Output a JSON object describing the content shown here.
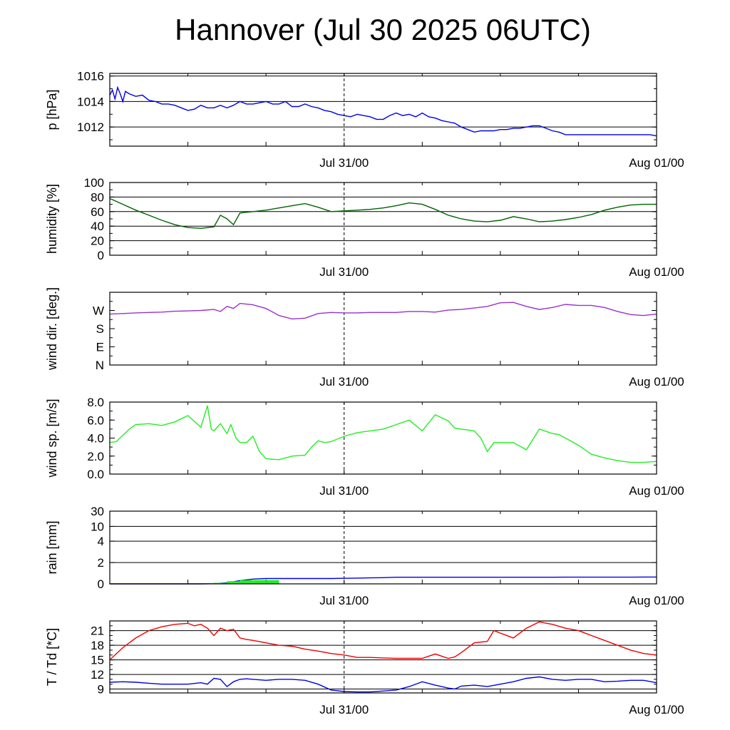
{
  "title": "Hannover (Jul 30 2025 06UTC)",
  "colors": {
    "pressure": "#0000ee",
    "humidity": "#006400",
    "wind_dir": "#9932cc",
    "wind_speed": "#22ee22",
    "rain_accum": "#0000ee",
    "rain_bar": "#22ee22",
    "temperature": "#ee0000",
    "dewpoint": "#0000ee"
  },
  "chart_data": [
    {
      "type": "line",
      "ylabel": "p [hPa]",
      "ylim": [
        1010.5,
        1016.2
      ],
      "yticks": [
        1012,
        1014,
        1016
      ],
      "grid": true,
      "x_ticks": [
        "Jul 31/00",
        "Aug 01/00"
      ],
      "series": [
        {
          "key": "pressure",
          "x": [
            0,
            0.2,
            0.4,
            0.6,
            0.8,
            1,
            1.2,
            1.5,
            2,
            2.5,
            3,
            3.5,
            4,
            4.5,
            5,
            5.5,
            6,
            6.5,
            7,
            7.5,
            8,
            8.5,
            9,
            9.5,
            10,
            10.5,
            11,
            11.5,
            12,
            12.5,
            13,
            13.5,
            14,
            14.5,
            15,
            15.5,
            16,
            16.5,
            17,
            17.5,
            18,
            18.5,
            19,
            19.5,
            20,
            20.5,
            21,
            21.5,
            22,
            22.5,
            23,
            23.5,
            24,
            24.5,
            25,
            25.5,
            26,
            26.5,
            27,
            27.5,
            28,
            28.5,
            29,
            29.5,
            30,
            30.5,
            31,
            31.5,
            32,
            32.5,
            33,
            33.5,
            34,
            34.5,
            35,
            35.5,
            36,
            36.5,
            37,
            37.5,
            38,
            38.5,
            39,
            39.5,
            40,
            40.5,
            41,
            41.5,
            42
          ],
          "values": [
            1014.5,
            1014.9,
            1014.2,
            1015.1,
            1014.6,
            1014.0,
            1014.8,
            1014.6,
            1014.4,
            1014.5,
            1014.1,
            1014.0,
            1013.8,
            1013.8,
            1013.7,
            1013.5,
            1013.3,
            1013.4,
            1013.7,
            1013.5,
            1013.5,
            1013.7,
            1013.5,
            1013.7,
            1014.0,
            1013.8,
            1013.8,
            1013.9,
            1014.0,
            1013.8,
            1013.8,
            1014.0,
            1013.6,
            1013.6,
            1013.8,
            1013.6,
            1013.5,
            1013.3,
            1013.2,
            1013.0,
            1012.9,
            1012.8,
            1013.0,
            1012.9,
            1012.8,
            1012.6,
            1012.6,
            1012.9,
            1013.1,
            1012.9,
            1013.0,
            1012.8,
            1013.1,
            1012.8,
            1012.7,
            1012.5,
            1012.4,
            1012.3,
            1012.0,
            1011.8,
            1011.6,
            1011.7,
            1011.7,
            1011.7,
            1011.8,
            1011.8,
            1011.9,
            1011.9,
            1012.0,
            1012.1,
            1012.1,
            1011.9,
            1011.7,
            1011.6,
            1011.4,
            1011.4,
            1011.4,
            1011.4,
            1011.4,
            1011.4,
            1011.4,
            1011.4,
            1011.4,
            1011.4,
            1011.4,
            1011.4,
            1011.4,
            1011.4,
            1011.3
          ]
        }
      ]
    },
    {
      "type": "line",
      "ylabel": "humidity [%]",
      "ylim": [
        0,
        100
      ],
      "yticks": [
        0,
        20,
        40,
        60,
        80,
        100
      ],
      "grid": true,
      "x_ticks": [
        "Jul 31/00",
        "Aug 01/00"
      ],
      "series": [
        {
          "key": "humidity",
          "x": [
            0,
            1,
            2,
            3,
            4,
            5,
            6,
            7,
            8,
            8.5,
            9,
            9.5,
            10,
            11,
            12,
            13,
            14,
            15,
            16,
            17,
            18,
            19,
            20,
            21,
            22,
            23,
            24,
            25,
            26,
            27,
            28,
            29,
            30,
            31,
            32,
            33,
            34,
            35,
            36,
            37,
            38,
            39,
            40,
            41,
            42
          ],
          "values": [
            78,
            70,
            62,
            55,
            48,
            42,
            38,
            37,
            39,
            55,
            50,
            42,
            58,
            60,
            62,
            65,
            68,
            71,
            66,
            60,
            61,
            62,
            63,
            65,
            68,
            72,
            70,
            63,
            55,
            50,
            47,
            46,
            48,
            53,
            50,
            46,
            47,
            49,
            52,
            56,
            62,
            66,
            69,
            70,
            70
          ]
        }
      ]
    },
    {
      "type": "line",
      "ylabel": "wind dir. [deg.]",
      "ylim": [
        0,
        360
      ],
      "yticks": [
        0,
        90,
        180,
        270
      ],
      "ytick_labels": [
        "N",
        "E",
        "S",
        "W"
      ],
      "grid": false,
      "x_ticks": [
        "Jul 31/00",
        "Aug 01/00"
      ],
      "series": [
        {
          "key": "wind_dir",
          "x": [
            0,
            1,
            2,
            3,
            4,
            5,
            6,
            7,
            8,
            8.5,
            9,
            9.5,
            10,
            11,
            12,
            13,
            14,
            15,
            16,
            17,
            18,
            19,
            20,
            21,
            22,
            23,
            24,
            25,
            26,
            27,
            28,
            29,
            30,
            31,
            32,
            33,
            34,
            35,
            36,
            37,
            38,
            39,
            40,
            41,
            42
          ],
          "values": [
            252,
            255,
            258,
            260,
            262,
            266,
            268,
            270,
            275,
            265,
            290,
            280,
            305,
            298,
            280,
            245,
            228,
            232,
            255,
            260,
            258,
            258,
            260,
            260,
            260,
            265,
            265,
            262,
            272,
            275,
            282,
            290,
            308,
            310,
            290,
            275,
            285,
            300,
            295,
            295,
            285,
            265,
            250,
            245,
            252
          ]
        }
      ]
    },
    {
      "type": "line",
      "ylabel": "wind sp. [m/s]",
      "ylim": [
        0,
        8
      ],
      "yticks": [
        0,
        2,
        4,
        6,
        8
      ],
      "ytick_labels": [
        "0.0",
        "2.0",
        "4.0",
        "6.0",
        "8.0"
      ],
      "grid": false,
      "x_ticks": [
        "Jul 31/00",
        "Aug 01/00"
      ],
      "series": [
        {
          "key": "wind_speed",
          "x": [
            0,
            0.5,
            1,
            1.5,
            2,
            3,
            4,
            5,
            6,
            7,
            7.5,
            7.8,
            8,
            8.5,
            9,
            9.3,
            9.7,
            10,
            10.5,
            11,
            11.5,
            12,
            13,
            14,
            15,
            15.5,
            16,
            16.5,
            17,
            18,
            19,
            20,
            21,
            22,
            23,
            24,
            25,
            26,
            26.5,
            27,
            28,
            28.5,
            29,
            29.5,
            30,
            31,
            32,
            33,
            34,
            34.5,
            35,
            36,
            37,
            38,
            39,
            40,
            41,
            42
          ],
          "values": [
            3.5,
            3.6,
            4.3,
            5.0,
            5.5,
            5.6,
            5.4,
            5.8,
            6.5,
            5.2,
            7.6,
            5.0,
            4.8,
            5.6,
            4.5,
            5.5,
            4.0,
            3.5,
            3.5,
            4.2,
            2.5,
            1.7,
            1.6,
            2.0,
            2.1,
            3.0,
            3.7,
            3.5,
            3.6,
            4.2,
            4.6,
            4.8,
            5.0,
            5.5,
            6.0,
            4.8,
            6.6,
            5.9,
            5.1,
            5.0,
            4.8,
            4.0,
            2.5,
            3.5,
            3.5,
            3.5,
            2.7,
            5.0,
            4.5,
            4.4,
            4.0,
            3.2,
            2.2,
            1.8,
            1.5,
            1.3,
            1.3,
            1.4
          ]
        }
      ]
    },
    {
      "type": "area",
      "ylabel": "rain [mm]",
      "yticks": [
        0,
        2,
        4,
        10,
        30
      ],
      "grid": true,
      "x_ticks": [
        "Jul 31/00",
        "Aug 01/00"
      ],
      "series": [
        {
          "key": "rain_accum",
          "x": [
            0,
            6,
            7,
            8,
            9,
            10,
            11,
            12,
            13,
            14,
            15,
            16,
            17,
            18,
            19,
            20,
            21,
            22,
            23,
            24,
            25,
            26,
            27,
            28,
            29,
            30,
            31,
            32,
            33,
            34,
            35,
            36,
            37,
            38,
            39,
            40,
            41,
            42
          ],
          "values": [
            0,
            0,
            0,
            0.02,
            0.1,
            0.3,
            0.45,
            0.5,
            0.5,
            0.5,
            0.5,
            0.5,
            0.5,
            0.52,
            0.54,
            0.56,
            0.58,
            0.62,
            0.62,
            0.62,
            0.62,
            0.62,
            0.62,
            0.62,
            0.62,
            0.62,
            0.62,
            0.62,
            0.62,
            0.62,
            0.63,
            0.63,
            0.63,
            0.63,
            0.63,
            0.63,
            0.64,
            0.64
          ]
        },
        {
          "key": "rain_bar",
          "x": [
            7.5,
            8.5,
            9.5,
            10.5,
            11.5,
            12.5,
            13.5,
            25.5,
            26.5,
            27.5,
            28.5
          ],
          "values": [
            0.05,
            0.1,
            0.25,
            0.35,
            0.35,
            0.35,
            0.0,
            0.02,
            0.03,
            0.02,
            0.0
          ]
        }
      ]
    },
    {
      "type": "line",
      "ylabel": "T / Td [*C]",
      "ylim": [
        8.2,
        23.0
      ],
      "yticks": [
        9,
        12,
        15,
        18,
        21
      ],
      "grid": true,
      "x_ticks": [
        "Jul 31/00",
        "Aug 01/00"
      ],
      "series": [
        {
          "key": "temperature",
          "x": [
            0,
            1,
            2,
            3,
            4,
            5,
            6,
            6.5,
            7,
            7.5,
            8,
            8.5,
            9,
            9.5,
            10,
            10.5,
            11,
            12,
            13,
            14,
            15,
            16,
            17,
            18,
            19,
            20,
            21,
            22,
            23,
            24,
            25,
            26,
            26.5,
            27,
            28,
            29,
            29.5,
            30,
            31,
            32,
            33,
            34,
            35,
            36,
            37,
            38,
            39,
            40,
            41,
            42
          ],
          "values": [
            15.0,
            17.5,
            19.5,
            21.0,
            21.8,
            22.3,
            22.5,
            22.0,
            22.3,
            21.5,
            20.0,
            21.5,
            21.0,
            21.3,
            19.5,
            19.2,
            19.0,
            18.5,
            18.0,
            17.8,
            17.2,
            16.8,
            16.3,
            16.0,
            15.5,
            15.5,
            15.4,
            15.3,
            15.3,
            15.3,
            16.2,
            15.3,
            15.6,
            16.5,
            18.5,
            18.8,
            21.0,
            20.5,
            19.5,
            21.5,
            22.8,
            22.3,
            21.5,
            21.0,
            20.0,
            19.0,
            18.0,
            17.0,
            16.3,
            16.0
          ]
        },
        {
          "key": "dewpoint",
          "x": [
            0,
            1,
            2,
            3,
            4,
            5,
            6,
            7,
            7.5,
            8,
            8.5,
            9,
            9.5,
            10,
            10.5,
            11,
            12,
            13,
            14,
            15,
            16,
            17,
            18,
            19,
            20,
            21,
            22,
            23,
            24,
            25,
            26,
            26.5,
            27,
            28,
            29,
            30,
            31,
            32,
            33,
            34,
            35,
            36,
            37,
            38,
            39,
            40,
            41,
            42
          ],
          "values": [
            10.4,
            10.5,
            10.4,
            10.2,
            10.0,
            10.0,
            10.0,
            10.3,
            10.0,
            11.2,
            11.0,
            9.5,
            10.5,
            11.0,
            11.1,
            11.0,
            10.8,
            11.0,
            11.0,
            10.8,
            10.0,
            8.8,
            8.5,
            8.4,
            8.4,
            8.6,
            8.8,
            9.5,
            10.5,
            9.8,
            9.2,
            9.0,
            9.6,
            9.8,
            9.5,
            10.0,
            10.5,
            11.2,
            11.5,
            11.0,
            10.8,
            11.0,
            11.0,
            10.5,
            10.6,
            10.8,
            10.8,
            10.3
          ]
        }
      ]
    }
  ]
}
